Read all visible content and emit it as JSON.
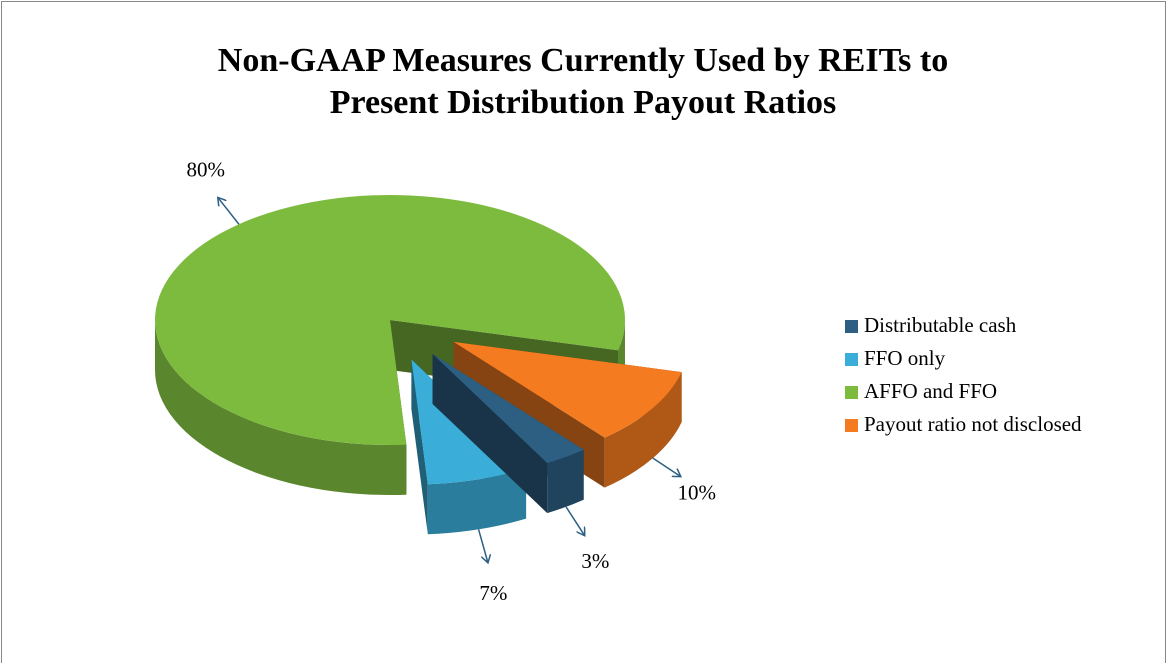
{
  "chart_data": {
    "type": "pie",
    "title": "Non-GAAP Measures Currently Used by REITs to Present Distribution Payout Ratios",
    "categories": [
      "Distributable cash",
      "FFO only",
      "AFFO and FFO",
      "Payout ratio not disclosed"
    ],
    "values": [
      3,
      7,
      80,
      10
    ],
    "value_labels": [
      "3%",
      "7%",
      "80%",
      "10%"
    ],
    "colors": [
      "#2d5f82",
      "#3aaed8",
      "#7dbb3e",
      "#f47b20"
    ],
    "legend": "right"
  }
}
